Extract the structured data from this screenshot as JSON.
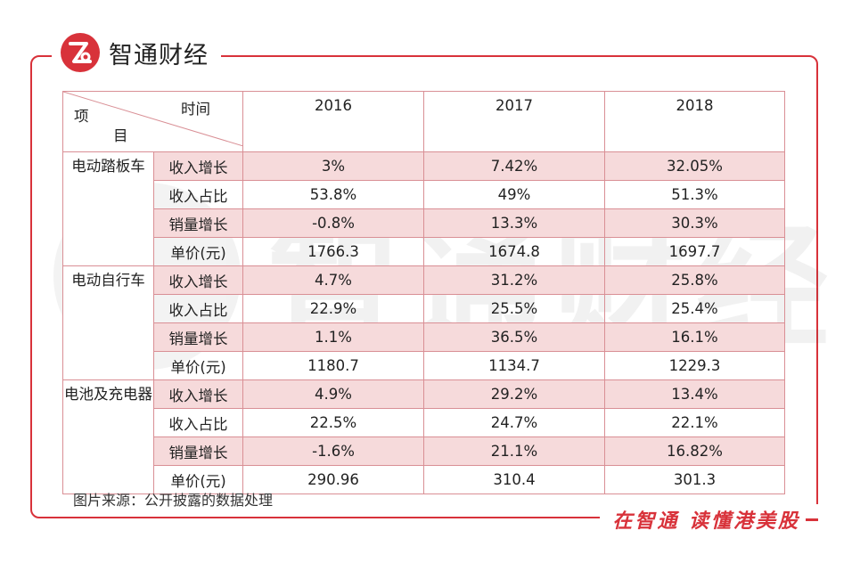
{
  "brand": {
    "name": "智通财经",
    "logo_icon": "zhitong-logo-icon",
    "accent": "#d8323a"
  },
  "watermark": {
    "text": "智通财经"
  },
  "table": {
    "header": {
      "time_label": "时间",
      "item_label_1": "项",
      "item_label_2": "目",
      "years": [
        "2016",
        "2017",
        "2018"
      ]
    },
    "groups": [
      {
        "category": "电动踏板车",
        "rows": [
          {
            "metric": "收入增长",
            "values": [
              "3%",
              "7.42%",
              "32.05%"
            ]
          },
          {
            "metric": "收入占比",
            "values": [
              "53.8%",
              "49%",
              "51.3%"
            ]
          },
          {
            "metric": "销量增长",
            "values": [
              "-0.8%",
              "13.3%",
              "30.3%"
            ]
          },
          {
            "metric": "单价(元)",
            "values": [
              "1766.3",
              "1674.8",
              "1697.7"
            ]
          }
        ]
      },
      {
        "category": "电动自行车",
        "rows": [
          {
            "metric": "收入增长",
            "values": [
              "4.7%",
              "31.2%",
              "25.8%"
            ]
          },
          {
            "metric": "收入占比",
            "values": [
              "22.9%",
              "25.5%",
              "25.4%"
            ]
          },
          {
            "metric": "销量增长",
            "values": [
              "1.1%",
              "36.5%",
              "16.1%"
            ]
          },
          {
            "metric": "单价(元)",
            "values": [
              "1180.7",
              "1134.7",
              "1229.3"
            ]
          }
        ]
      },
      {
        "category": "电池及充电器",
        "rows": [
          {
            "metric": "收入增长",
            "values": [
              "4.9%",
              "29.2%",
              "13.4%"
            ]
          },
          {
            "metric": "收入占比",
            "values": [
              "22.5%",
              "24.7%",
              "22.1%"
            ]
          },
          {
            "metric": "销量增长",
            "values": [
              "-1.6%",
              "21.1%",
              "16.82%"
            ]
          },
          {
            "metric": "单价(元)",
            "values": [
              "290.96",
              "310.4",
              "301.3"
            ]
          }
        ]
      }
    ]
  },
  "source": "图片来源：公开披露的数据处理",
  "slogan": "在智通 读懂港美股"
}
